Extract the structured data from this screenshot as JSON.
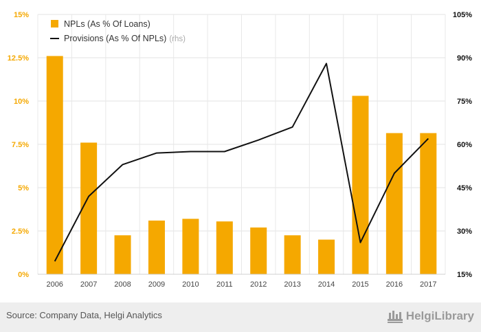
{
  "chart_data": {
    "type": "bar",
    "categories": [
      "2006",
      "2007",
      "2008",
      "2009",
      "2010",
      "2011",
      "2012",
      "2013",
      "2014",
      "2015",
      "2016",
      "2017"
    ],
    "series": [
      {
        "name": "NPLs (As % Of Loans)",
        "type": "bar",
        "axis": "left",
        "color": "#f5a800",
        "values": [
          12.6,
          7.6,
          2.25,
          3.1,
          3.2,
          3.05,
          2.7,
          2.25,
          2.0,
          10.3,
          8.15,
          8.15
        ]
      },
      {
        "name": "Provisions (As % Of NPLs)",
        "name_suffix": "(rhs)",
        "type": "line",
        "axis": "right",
        "color": "#111111",
        "values": [
          19.5,
          42.0,
          53.0,
          57.0,
          57.5,
          57.5,
          61.5,
          66.0,
          88.0,
          26.0,
          50.0,
          62.0
        ]
      }
    ],
    "yleft": {
      "ylim": [
        0,
        15
      ],
      "ticks": [
        "0%",
        "2.5%",
        "5%",
        "7.5%",
        "10%",
        "12.5%",
        "15%"
      ],
      "tick_values": [
        0,
        2.5,
        5,
        7.5,
        10,
        12.5,
        15
      ],
      "color": "#f5a800"
    },
    "yright": {
      "ylim": [
        15,
        105
      ],
      "ticks": [
        "15%",
        "30%",
        "45%",
        "60%",
        "75%",
        "90%",
        "105%"
      ],
      "tick_values": [
        15,
        30,
        45,
        60,
        75,
        90,
        105
      ],
      "color": "#111111"
    },
    "grid": true,
    "legend": "top-left"
  },
  "footer": {
    "source": "Source: Company Data, Helgi Analytics",
    "brand": "HelgiLibrary"
  }
}
